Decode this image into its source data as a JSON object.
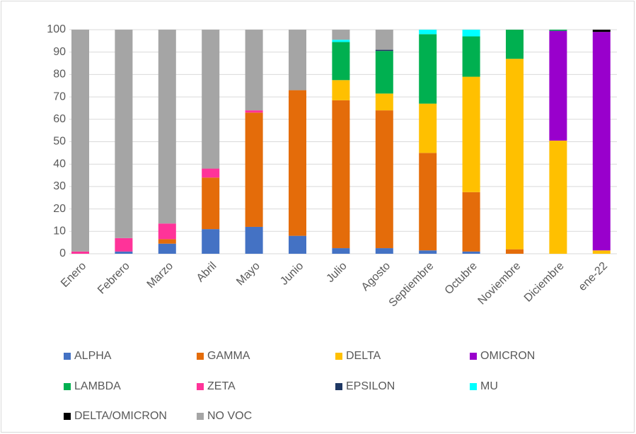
{
  "chart_data": {
    "type": "stacked_bar",
    "categories": [
      "Enero",
      "Febrero",
      "Marzo",
      "Abril",
      "Mayo",
      "Junio",
      "Julio",
      "Agosto",
      "Septiembre",
      "Octubre",
      "Noviembre",
      "Diciembre",
      "ene-22"
    ],
    "series": [
      {
        "name": "ALPHA",
        "color": "#4472c4",
        "values": [
          0,
          1,
          4.5,
          11,
          12,
          8,
          2.5,
          2.5,
          1.5,
          1,
          0,
          0,
          0
        ]
      },
      {
        "name": "GAMMA",
        "color": "#e46c0a",
        "values": [
          0,
          0,
          2,
          23,
          51,
          65,
          66,
          61.5,
          43.5,
          26.5,
          2,
          0,
          0
        ]
      },
      {
        "name": "DELTA",
        "color": "#ffc000",
        "values": [
          0,
          0,
          0,
          0,
          0,
          0,
          9,
          7.5,
          22,
          51.5,
          85,
          50.5,
          1.5
        ]
      },
      {
        "name": "OMICRON",
        "color": "#9900cc",
        "values": [
          0,
          0,
          0,
          0,
          0,
          0,
          0,
          0,
          0,
          0,
          0,
          49,
          97.5
        ]
      },
      {
        "name": "LAMBDA",
        "color": "#00b050",
        "values": [
          0,
          0,
          0,
          0,
          0,
          0,
          17,
          19,
          31,
          18,
          13,
          0.5,
          0
        ]
      },
      {
        "name": "ZETA",
        "color": "#ff3399",
        "values": [
          1,
          6,
          7,
          4,
          1,
          0,
          0,
          0,
          0,
          0,
          0,
          0,
          0
        ]
      },
      {
        "name": "EPSILON",
        "color": "#1f3864",
        "values": [
          0,
          0,
          0,
          0,
          0,
          0,
          0,
          0.5,
          0,
          0,
          0,
          0,
          0
        ]
      },
      {
        "name": "MU",
        "color": "#00ffff",
        "values": [
          0,
          0,
          0,
          0,
          0,
          0,
          1,
          0,
          2,
          3,
          0,
          0,
          0
        ]
      },
      {
        "name": "DELTA/OMICRON",
        "color": "#000000",
        "values": [
          0,
          0,
          0,
          0,
          0,
          0,
          0,
          0,
          0,
          0,
          0,
          0,
          1
        ]
      },
      {
        "name": "NO VOC",
        "color": "#a5a5a5",
        "values": [
          99,
          93,
          86.5,
          62,
          36,
          27,
          4.5,
          9,
          0,
          0,
          0,
          0,
          0
        ]
      }
    ],
    "ylim": [
      0,
      100
    ],
    "yticks": [
      0,
      10,
      20,
      30,
      40,
      50,
      60,
      70,
      80,
      90,
      100
    ],
    "grid": true,
    "legend": "bottom"
  }
}
